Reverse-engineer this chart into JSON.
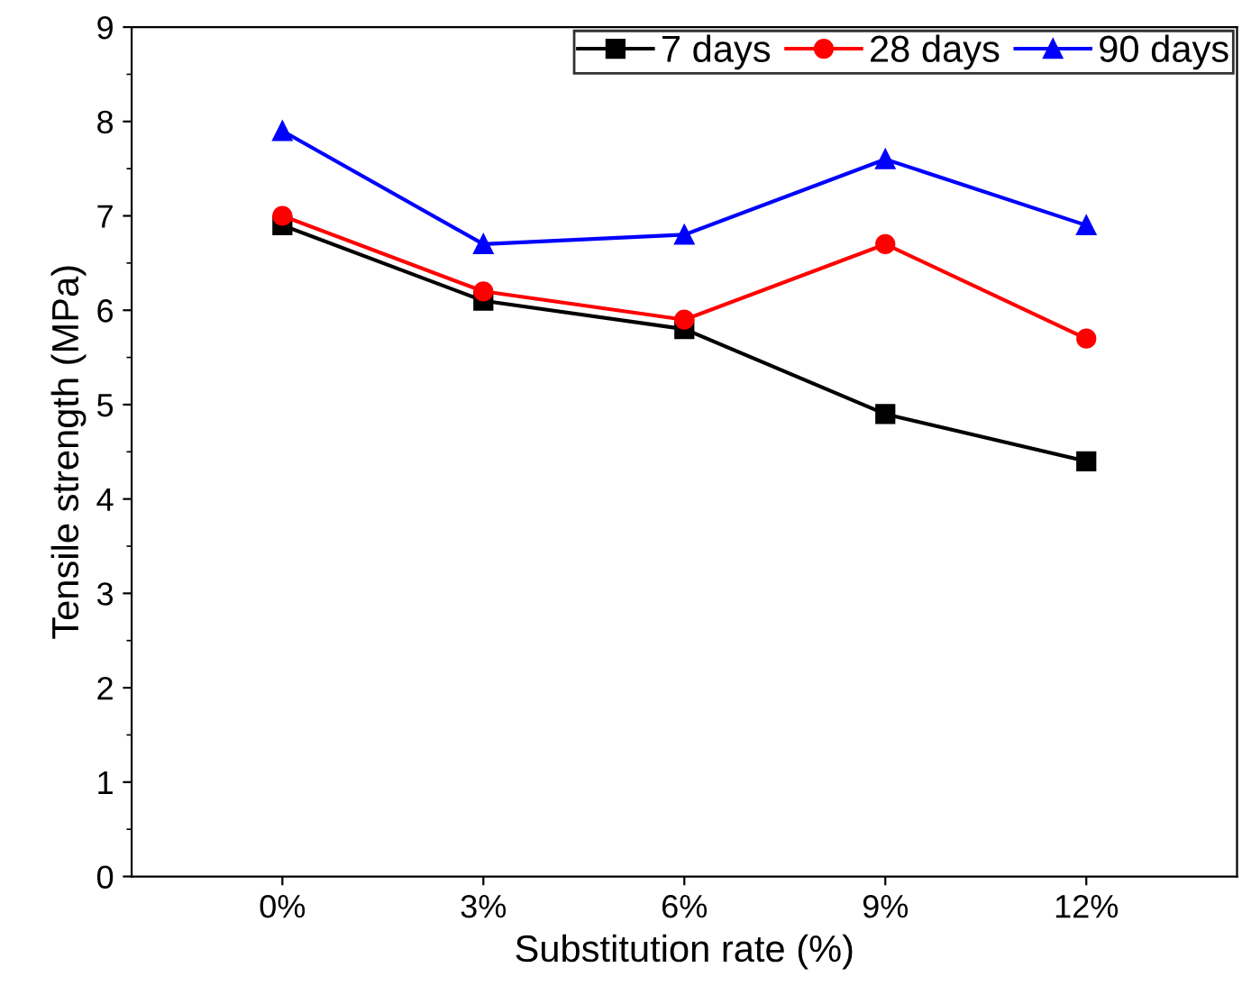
{
  "chart_data": {
    "type": "line",
    "xlabel": "Substitution rate (%)",
    "ylabel": "Tensile strength (MPa)",
    "categories": [
      "0%",
      "3%",
      "6%",
      "9%",
      "12%"
    ],
    "series": [
      {
        "name": "7 days",
        "color": "#000000",
        "marker": "square",
        "values": [
          6.9,
          6.1,
          5.8,
          4.9,
          4.4
        ]
      },
      {
        "name": "28 days",
        "color": "#ff0000",
        "marker": "circle",
        "values": [
          7.0,
          6.2,
          5.9,
          6.7,
          5.7
        ]
      },
      {
        "name": "90 days",
        "color": "#0000ff",
        "marker": "triangle",
        "values": [
          7.9,
          6.7,
          6.8,
          7.6,
          6.9
        ]
      }
    ],
    "ylim": [
      0,
      9
    ],
    "yticks": [
      0,
      1,
      2,
      3,
      4,
      5,
      6,
      7,
      8,
      9
    ],
    "grid": false,
    "legend": "top right",
    "line_style": "solid"
  }
}
